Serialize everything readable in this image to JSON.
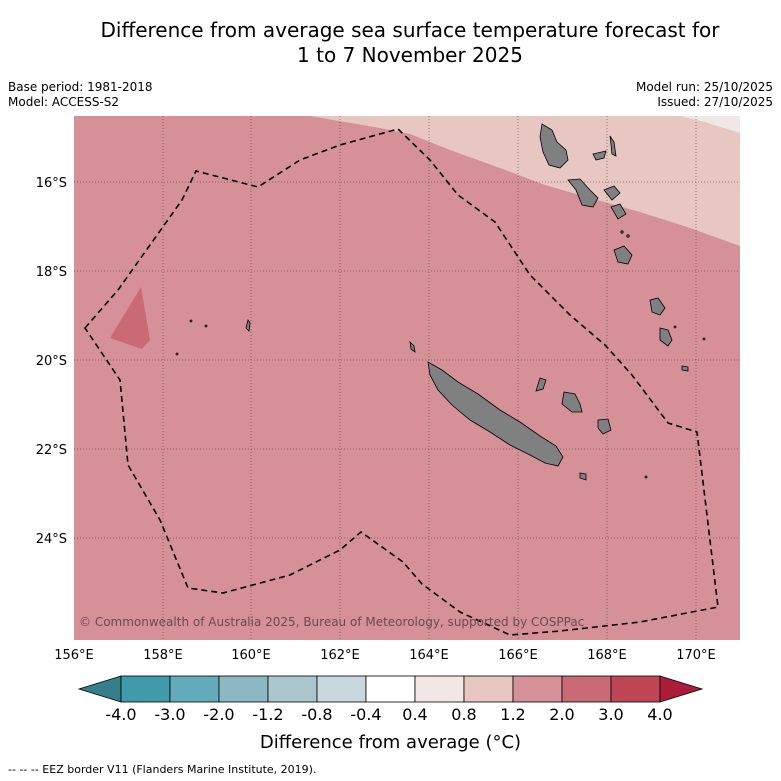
{
  "title_line1": "Difference from average sea surface temperature forecast for",
  "title_line2": "1 to 7 November 2025",
  "base_period": "Base period: 1981-2018",
  "model": "Model: ACCESS-S2",
  "model_run": "Model run: 25/10/2025",
  "issued": "Issued: 27/10/2025",
  "copyright": "© Commonwealth of Australia 2025, Bureau of Meteorology, supported by COSPPac",
  "lat_labels": [
    "16°S",
    "18°S",
    "20°S",
    "22°S",
    "24°S"
  ],
  "lon_labels": [
    "156°E",
    "158°E",
    "160°E",
    "162°E",
    "164°E",
    "166°E",
    "168°E",
    "170°E"
  ],
  "colorbar": {
    "title": "Difference from average (°C)",
    "labels": [
      "-4.0",
      "-3.0",
      "-2.0",
      "-1.2",
      "-0.8",
      "-0.4",
      "0.4",
      "0.8",
      "1.2",
      "2.0",
      "3.0",
      "4.0"
    ],
    "colors": [
      "#3f9aaa",
      "#64acbb",
      "#8cb8c4",
      "#a9c7cc",
      "#c9d8dc",
      "#ffffff",
      "#f1e8e6",
      "#e8c6c2",
      "#d69198",
      "#c96a75",
      "#bf4656",
      "#ac1c3b"
    ],
    "low_color": "#347f8a"
  },
  "colors": {
    "main_anomaly": "#d69198",
    "mid_anomaly": "#e8c6c2",
    "low_anomaly": "#f1e8e6",
    "warm_patch": "#c96a75",
    "land": "#808080"
  },
  "footnote": "--  --  -- EEZ border V11 (Flanders Marine Institute, 2019)."
}
